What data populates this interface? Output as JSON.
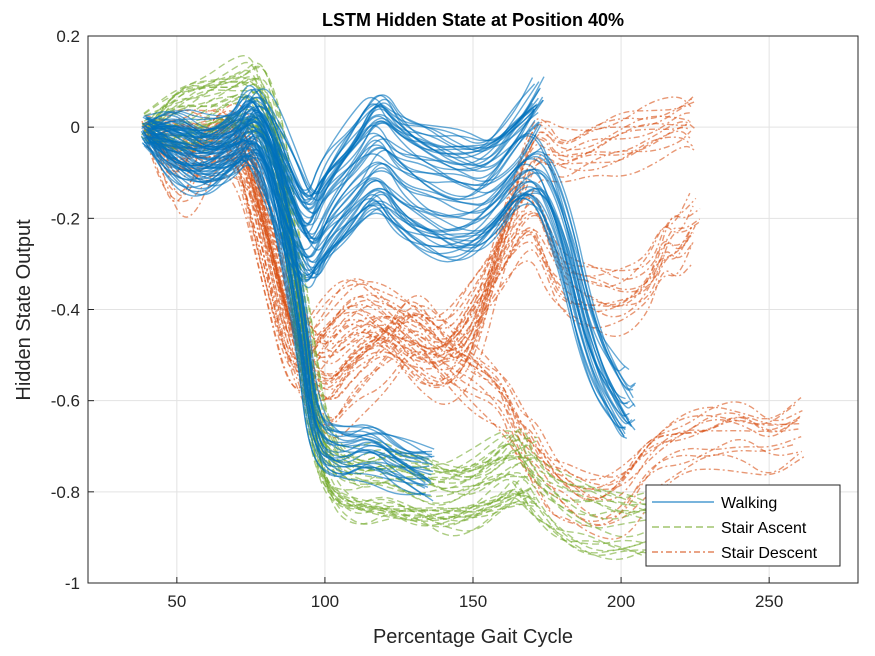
{
  "chart_data": {
    "type": "line",
    "title": "LSTM Hidden State at Position 40%",
    "xlabel": "Percentage Gait Cycle",
    "ylabel": "Hidden State Output",
    "xlim": [
      20,
      280
    ],
    "ylim": [
      -1,
      0.2
    ],
    "xticks": [
      50,
      100,
      150,
      200,
      250
    ],
    "yticks": [
      -1,
      -0.8,
      -0.6,
      -0.4,
      -0.2,
      0,
      0.2
    ],
    "xtick_labels": [
      "50",
      "100",
      "150",
      "200",
      "250"
    ],
    "ytick_labels": [
      "-1",
      "-0.8",
      "-0.6",
      "-0.4",
      "-0.2",
      "0",
      "0.2"
    ],
    "grid": true,
    "legend_position": "bottom-right",
    "series": [
      {
        "name": "Walking",
        "color": "#0072BD",
        "line_style": "solid",
        "representative_curves": [
          {
            "x": [
              40,
              50,
              60,
              70,
              75,
              80,
              88,
              95,
              100,
              110,
              118,
              125,
              135,
              145,
              155,
              165,
              172
            ],
            "y": [
              0,
              -0.03,
              -0.06,
              -0.03,
              0.03,
              0.0,
              -0.12,
              -0.22,
              -0.14,
              -0.06,
              0.02,
              -0.04,
              -0.07,
              -0.09,
              -0.1,
              -0.03,
              0.03
            ]
          },
          {
            "x": [
              40,
              50,
              60,
              70,
              75,
              80,
              88,
              95,
              100,
              110,
              118,
              125,
              135,
              145,
              155,
              170,
              180,
              190,
              200,
              203
            ],
            "y": [
              -0.01,
              -0.05,
              -0.08,
              -0.04,
              0.0,
              -0.05,
              -0.2,
              -0.3,
              -0.23,
              -0.16,
              -0.1,
              -0.16,
              -0.2,
              -0.22,
              -0.2,
              -0.06,
              -0.2,
              -0.48,
              -0.6,
              -0.61
            ]
          },
          {
            "x": [
              40,
              50,
              60,
              70,
              78,
              85,
              92,
              96,
              105,
              115,
              125,
              135
            ],
            "y": [
              -0.02,
              -0.06,
              -0.09,
              -0.05,
              -0.02,
              -0.2,
              -0.46,
              -0.7,
              -0.74,
              -0.72,
              -0.76,
              -0.78
            ]
          }
        ]
      },
      {
        "name": "Stair Ascent",
        "color": "#77AC30",
        "line_style": "dashed",
        "representative_curves": [
          {
            "x": [
              40,
              50,
              60,
              70,
              76,
              80,
              85,
              90,
              95,
              100,
              110,
              120,
              130,
              140,
              150,
              160,
              165,
              170,
              180,
              190,
              200,
              210
            ],
            "y": [
              0,
              0.02,
              0.05,
              0.07,
              0.08,
              0.04,
              -0.05,
              -0.3,
              -0.55,
              -0.73,
              -0.78,
              -0.77,
              -0.79,
              -0.8,
              -0.79,
              -0.75,
              -0.72,
              -0.78,
              -0.84,
              -0.86,
              -0.87,
              -0.87
            ]
          },
          {
            "x": [
              40,
              50,
              60,
              70,
              76,
              80,
              85,
              90,
              95,
              100,
              110,
              120,
              130,
              140,
              150,
              160,
              170
            ],
            "y": [
              -0.01,
              0.01,
              0.03,
              0.05,
              0.06,
              0.02,
              -0.1,
              -0.38,
              -0.6,
              -0.76,
              -0.8,
              -0.79,
              -0.8,
              -0.82,
              -0.81,
              -0.77,
              -0.76
            ]
          }
        ]
      },
      {
        "name": "Stair Descent",
        "color": "#D95319",
        "line_style": "dash-dot",
        "representative_curves": [
          {
            "x": [
              40,
              45,
              50,
              55,
              60,
              70,
              75,
              80,
              90,
              100,
              110,
              120,
              130,
              140,
              150,
              160,
              165,
              170,
              175,
              180,
              190,
              200,
              210,
              220,
              230,
              240,
              250,
              260
            ],
            "y": [
              -0.01,
              -0.08,
              -0.13,
              -0.1,
              -0.05,
              -0.01,
              -0.06,
              -0.25,
              -0.52,
              -0.64,
              -0.55,
              -0.5,
              -0.42,
              -0.5,
              -0.55,
              -0.6,
              -0.68,
              -0.72,
              -0.77,
              -0.8,
              -0.84,
              -0.82,
              -0.73,
              -0.7,
              -0.68,
              -0.67,
              -0.7,
              -0.67
            ]
          },
          {
            "x": [
              40,
              50,
              60,
              70,
              80,
              90,
              100,
              110,
              120,
              130,
              140,
              150,
              160,
              170,
              175,
              180,
              190,
              200,
              210,
              215,
              220,
              225
            ],
            "y": [
              0,
              -0.03,
              -0.04,
              -0.02,
              -0.3,
              -0.55,
              -0.45,
              -0.38,
              -0.42,
              -0.47,
              -0.5,
              -0.4,
              -0.3,
              -0.2,
              -0.28,
              -0.35,
              -0.38,
              -0.39,
              -0.35,
              -0.26,
              -0.27,
              -0.22
            ]
          },
          {
            "x": [
              40,
              50,
              60,
              70,
              80,
              90,
              100,
              110,
              120,
              130,
              140,
              150,
              160,
              170,
              175,
              180,
              190,
              200,
              210,
              220,
              224
            ],
            "y": [
              -0.02,
              -0.05,
              -0.06,
              -0.03,
              -0.2,
              -0.45,
              -0.55,
              -0.48,
              -0.45,
              -0.52,
              -0.55,
              -0.5,
              -0.25,
              -0.05,
              -0.05,
              -0.08,
              -0.06,
              -0.04,
              -0.02,
              0.0,
              0.0
            ]
          }
        ]
      }
    ]
  }
}
